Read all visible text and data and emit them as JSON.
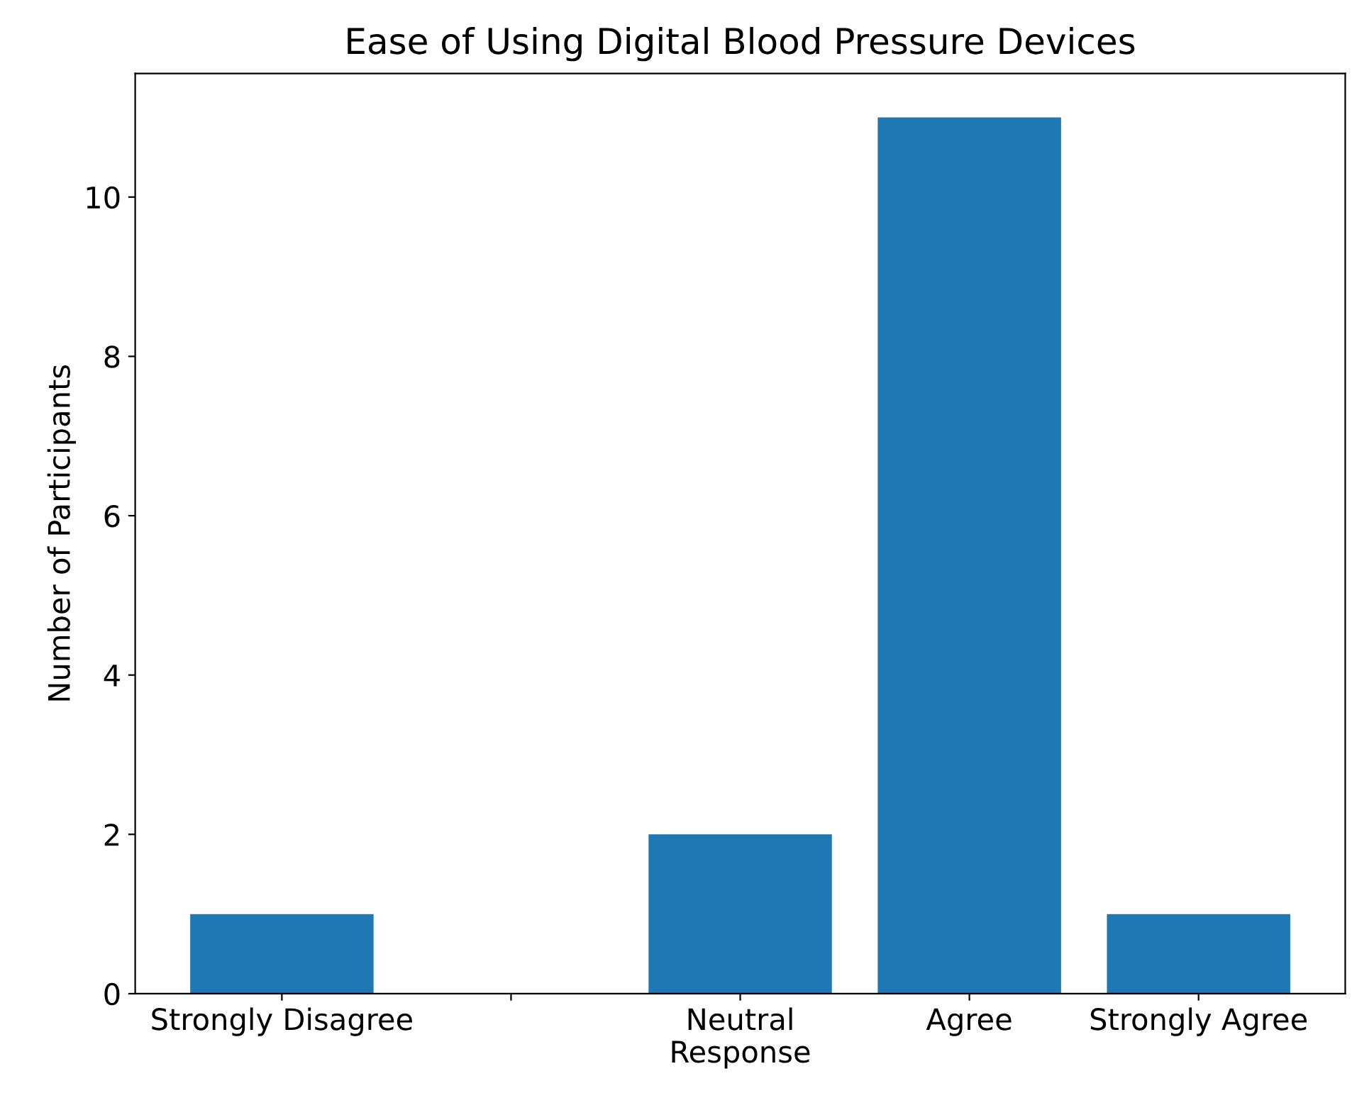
{
  "chart_data": {
    "type": "bar",
    "title": "Ease of Using Digital Blood Pressure Devices",
    "xlabel": "Response",
    "ylabel": "Number of Participants",
    "categories": [
      "Strongly Disagree",
      null,
      "Neutral",
      "Agree",
      "Strongly Agree"
    ],
    "values": [
      1,
      0,
      2,
      11,
      1
    ],
    "color": "#1f77b4",
    "ylim": [
      0,
      11.55
    ],
    "yticks": [
      0,
      2,
      4,
      6,
      8,
      10
    ],
    "grid": false
  }
}
